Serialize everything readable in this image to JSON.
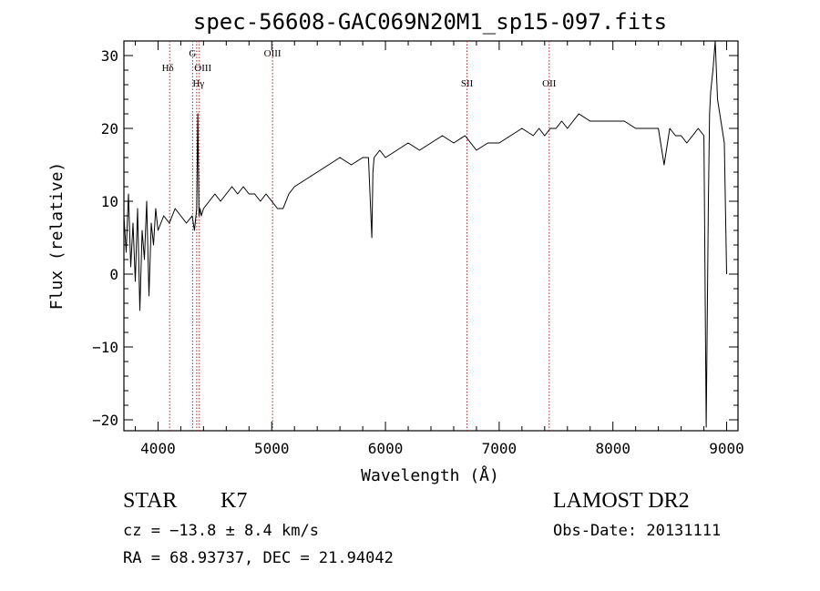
{
  "chart_data": {
    "type": "line",
    "title": "spec-56608-GAC069N20M1_sp15-097.fits",
    "xlabel": "Wavelength (Å)",
    "ylabel": "Flux (relative)",
    "xlim": [
      3700,
      9100
    ],
    "ylim": [
      -21.5,
      32
    ],
    "x_ticks": [
      4000,
      5000,
      6000,
      7000,
      8000,
      9000
    ],
    "y_ticks": [
      -20,
      -10,
      0,
      10,
      20,
      30
    ],
    "grid": false,
    "line_color": "#000000",
    "marker_color": "#b22222",
    "series": [
      {
        "x": [
          3700,
          3720,
          3740,
          3760,
          3780,
          3800,
          3820,
          3840,
          3860,
          3880,
          3900,
          3920,
          3940,
          3960,
          3980,
          4000,
          4050,
          4100,
          4150,
          4200,
          4250,
          4300,
          4320,
          4340,
          4350,
          4360,
          4370,
          4380,
          4400,
          4450,
          4500,
          4550,
          4600,
          4650,
          4700,
          4750,
          4800,
          4850,
          4900,
          4950,
          5000,
          5050,
          5100,
          5150,
          5200,
          5300,
          5400,
          5500,
          5600,
          5700,
          5800,
          5850,
          5880,
          5890,
          5900,
          5950,
          6000,
          6100,
          6200,
          6300,
          6400,
          6500,
          6600,
          6700,
          6800,
          6900,
          7000,
          7100,
          7200,
          7300,
          7350,
          7400,
          7450,
          7500,
          7550,
          7600,
          7650,
          7700,
          7800,
          7900,
          8000,
          8100,
          8200,
          8300,
          8400,
          8450,
          8500,
          8550,
          8600,
          8650,
          8700,
          8750,
          8800,
          8820,
          8840,
          8850,
          8860,
          8880,
          8900,
          8920,
          8940,
          8960,
          8980,
          9000
        ],
        "y": [
          8,
          3,
          11,
          1,
          7,
          -1,
          9,
          -5,
          6,
          2,
          10,
          -3,
          7,
          4,
          9,
          6,
          8,
          7,
          9,
          8,
          7,
          8,
          6,
          9,
          22,
          8,
          9,
          8,
          9,
          10,
          11,
          10,
          11,
          12,
          11,
          12,
          11,
          11,
          10,
          11,
          10,
          9,
          9,
          11,
          12,
          13,
          14,
          15,
          16,
          15,
          16,
          16,
          5,
          14,
          16,
          17,
          16,
          17,
          18,
          17,
          18,
          19,
          18,
          19,
          17,
          18,
          18,
          19,
          20,
          19,
          20,
          19,
          20,
          20,
          21,
          20,
          21,
          22,
          21,
          21,
          21,
          21,
          20,
          20,
          20,
          15,
          20,
          19,
          19,
          18,
          19,
          20,
          19,
          -21,
          10,
          22,
          25,
          28,
          32,
          24,
          22,
          20,
          18,
          0
        ]
      }
    ],
    "lines": [
      {
        "wavelength": 4102,
        "labels": [
          "Hδ"
        ]
      },
      {
        "wavelength": 4304,
        "labels": [
          "G"
        ]
      },
      {
        "wavelength": 4340,
        "labels": [
          "Hγ"
        ]
      },
      {
        "wavelength": 4363,
        "labels": [
          "OIII"
        ]
      },
      {
        "wavelength": 5007,
        "labels": [
          "OIII"
        ]
      },
      {
        "wavelength": 6717,
        "labels": [
          "SII"
        ]
      },
      {
        "wavelength": 7440,
        "labels": [
          "OII"
        ]
      }
    ]
  },
  "info": {
    "class": "STAR",
    "subclass": "K7",
    "survey": "LAMOST DR2",
    "cz": "cz = −13.8 ± 8.4 km/s",
    "obs_date": "Obs-Date: 20131111",
    "coords": "RA =  68.93737, DEC =  21.94042"
  }
}
